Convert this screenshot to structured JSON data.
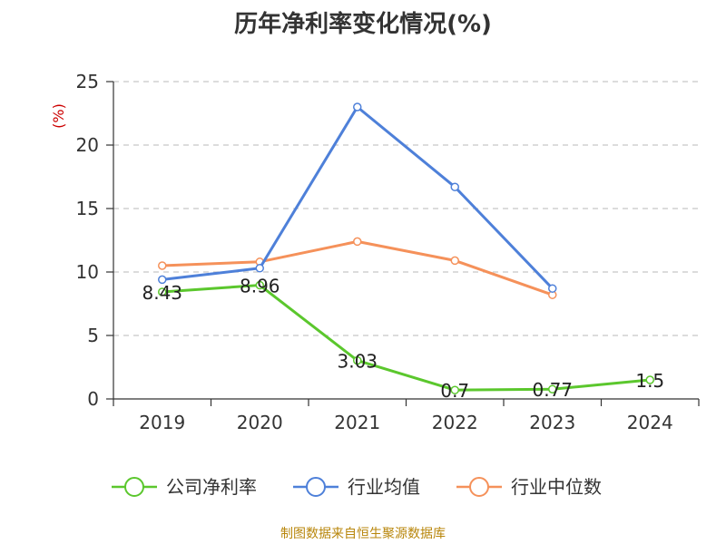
{
  "chart_data": {
    "type": "line",
    "title": "历年净利率变化情况(%)",
    "ylabel": "(%)",
    "xlabel": "",
    "categories": [
      "2019",
      "2020",
      "2021",
      "2022",
      "2023",
      "2024"
    ],
    "ylim": [
      0,
      25
    ],
    "yticks": [
      0,
      5,
      10,
      15,
      20,
      25
    ],
    "grid": true,
    "legend_position": "bottom",
    "series": [
      {
        "name": "公司净利率",
        "color": "#5bc72d",
        "values": [
          8.43,
          8.96,
          3.03,
          0.7,
          0.77,
          1.5
        ],
        "labels": [
          "8.43",
          "8.96",
          "3.03",
          "0.7",
          "0.77",
          "1.5"
        ]
      },
      {
        "name": "行业均值",
        "color": "#4e80d9",
        "values": [
          9.4,
          10.3,
          23.0,
          16.7,
          8.7,
          null
        ]
      },
      {
        "name": "行业中位数",
        "color": "#f5915a",
        "values": [
          10.5,
          10.8,
          12.4,
          10.9,
          8.2,
          null
        ]
      }
    ]
  },
  "colors": {
    "unit_label": "#cc0000",
    "source": "#b8860b"
  },
  "source_note": "制图数据来自恒生聚源数据库"
}
